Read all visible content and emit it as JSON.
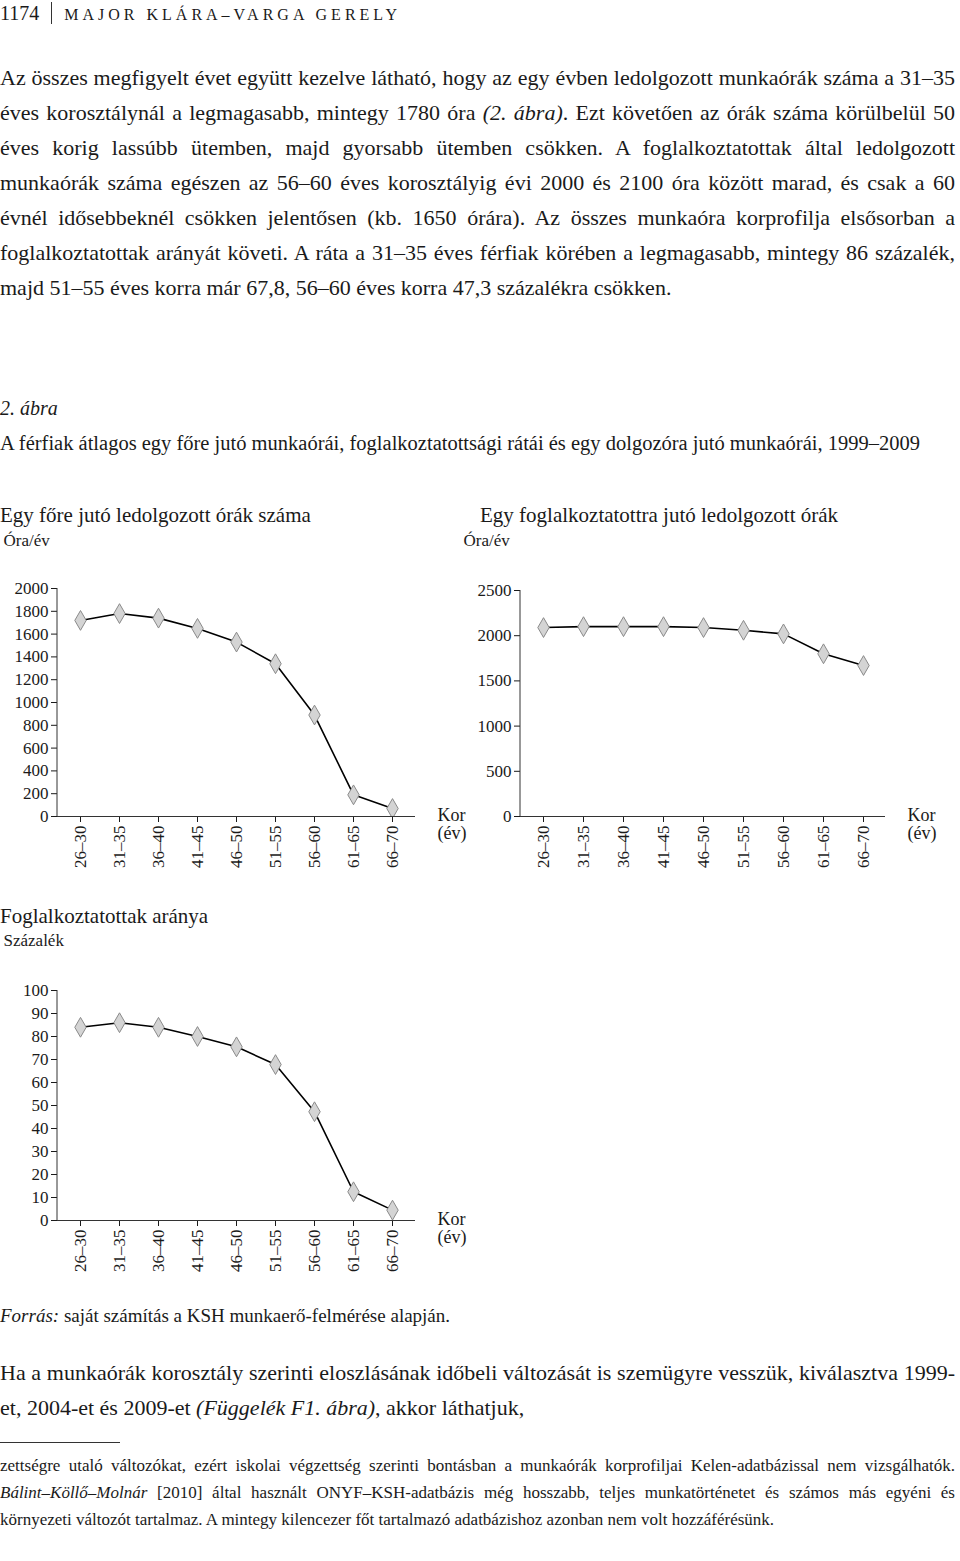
{
  "header": {
    "page": "1174",
    "authors": "MAJOR KLÁRA–VARGA GERELY"
  },
  "paragraph_1": [
    {
      "text": "Az összes megfigyelt évet együtt kezelve látható, hogy az egy évben ledolgozott munkaórák száma a 31–35 éves korosztálynál a legmagasabb, mintegy 1780 óra ",
      "italic": false
    },
    {
      "text": "(2. ábra)",
      "italic": true
    },
    {
      "text": ". Ezt követően az órák száma körülbelül 50 éves korig lassúbb ütemben, majd gyorsabb ütemben csökken. A foglalkoztatottak által ledolgozott munkaórák száma egészen az 56–60 éves korosztályig évi 2000 és 2100 óra között marad, és csak a 60 évnél idősebbeknél csökken jelentősen (kb. 1650 órára). Az összes munkaóra korprofilja elsősorban a foglalkoztatottak arányát követi. A ráta a 31–35 éves férfiak körében a legmagasabb, mintegy 86 százalék, majd 51–55 éves korra már 67,8, 56–60 éves korra 47,3 százalékra csökken.",
      "italic": false
    }
  ],
  "figure": {
    "label": "2. ábra",
    "caption": "A férfiak átlagos egy főre jutó munkaórái, foglalkoztatottsági rátái és egy dolgozóra jutó munkaórái, 1999–2009",
    "source": [
      {
        "text": "Forrás:",
        "italic": true
      },
      {
        "text": " saját számítás a KSH munkaerő-felmérése alapján.",
        "italic": false
      }
    ]
  },
  "chart_data": [
    {
      "type": "line",
      "title": "Egy főre jutó ledolgozott órák száma",
      "y_label": "Óra/év",
      "x_label": "Kor (év)",
      "categories": [
        "26–30",
        "31–35",
        "36–40",
        "41–45",
        "46–50",
        "51–55",
        "56–60",
        "61–65",
        "66–70"
      ],
      "values": [
        1720,
        1780,
        1740,
        1650,
        1530,
        1340,
        890,
        190,
        70
      ],
      "ylim": [
        0,
        2000
      ],
      "yticks": [
        0,
        200,
        400,
        600,
        800,
        1000,
        1200,
        1400,
        1600,
        1800,
        2000
      ],
      "color": "#000000",
      "marker": "diamond",
      "grid": false
    },
    {
      "type": "line",
      "title": "Egy foglalkoztatottra jutó ledolgozott órák",
      "y_label": "Óra/év",
      "x_label": "Kor (év)",
      "categories": [
        "26–30",
        "31–35",
        "36–40",
        "41–45",
        "46–50",
        "51–55",
        "56–60",
        "61–65",
        "66–70"
      ],
      "values": [
        2090,
        2100,
        2100,
        2100,
        2090,
        2060,
        2020,
        1800,
        1670
      ],
      "ylim": [
        0,
        2500
      ],
      "yticks": [
        0,
        500,
        1000,
        1500,
        2000,
        2500
      ],
      "color": "#000000",
      "marker": "diamond",
      "grid": false
    },
    {
      "type": "line",
      "title": "Foglalkoztatottak aránya",
      "y_label": "Százalék",
      "x_label": "Kor (év)",
      "categories": [
        "26–30",
        "31–35",
        "36–40",
        "41–45",
        "46–50",
        "51–55",
        "56–60",
        "61–65",
        "66–70"
      ],
      "values": [
        84,
        86,
        84,
        80,
        75.5,
        67.8,
        47.3,
        12.5,
        4.5
      ],
      "ylim": [
        0,
        100
      ],
      "yticks": [
        0,
        10,
        20,
        30,
        40,
        50,
        60,
        70,
        80,
        90,
        100
      ],
      "color": "#000000",
      "marker": "diamond",
      "grid": false
    }
  ],
  "paragraph_2": [
    {
      "text": "Ha a munkaórák korosztály szerinti eloszlásának időbeli változását is szemügyre vesszük, kiválasztva 1999-et, 2004-et és 2009-et ",
      "italic": false
    },
    {
      "text": "(Függelék F1. ábra)",
      "italic": true
    },
    {
      "text": ", akkor láthatjuk,",
      "italic": false
    }
  ],
  "footnote": [
    {
      "text": "zettségre utaló változókat, ezért iskolai végzettség szerinti bontásban a munkaórák korprofiljai Kelen-adatbázissal nem vizsgálhatók. ",
      "italic": false
    },
    {
      "text": "Bálint–Köllő–Molnár",
      "italic": true
    },
    {
      "text": " [2010] által használt ONYF–KSH-adatbázis még hosszabb, teljes munkatörténetet és számos más egyéni és környezeti változót tartalmaz. A mintegy kilencezer főt tartalmazó adatbázishoz azonban nem volt hozzáférésünk.",
      "italic": false
    }
  ]
}
